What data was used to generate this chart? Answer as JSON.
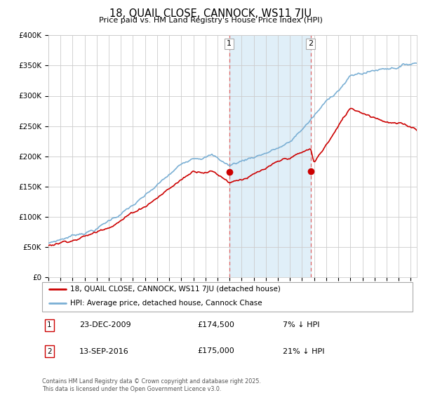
{
  "title": "18, QUAIL CLOSE, CANNOCK, WS11 7JU",
  "subtitle": "Price paid vs. HM Land Registry's House Price Index (HPI)",
  "ylim": [
    0,
    400000
  ],
  "xlim_start": 1995.0,
  "xlim_end": 2025.5,
  "hpi_color": "#7aafd4",
  "price_color": "#cc0000",
  "sale1_date": "23-DEC-2009",
  "sale1_price": 174500,
  "sale1_label": "1",
  "sale1_year": 2009.97,
  "sale2_date": "13-SEP-2016",
  "sale2_price": 175000,
  "sale2_label": "2",
  "sale2_year": 2016.71,
  "legend_line1": "18, QUAIL CLOSE, CANNOCK, WS11 7JU (detached house)",
  "legend_line2": "HPI: Average price, detached house, Cannock Chase",
  "sale1_pct": "7% ↓ HPI",
  "sale2_pct": "21% ↓ HPI",
  "footnote": "Contains HM Land Registry data © Crown copyright and database right 2025.\nThis data is licensed under the Open Government Licence v3.0.",
  "shaded_region_color": "#ddeef8",
  "grid_color": "#cccccc",
  "background_color": "#ffffff"
}
